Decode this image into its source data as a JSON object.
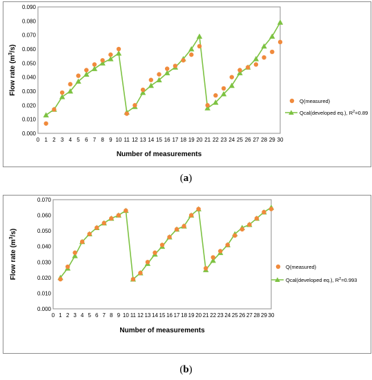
{
  "chart_data": [
    {
      "panel": "a",
      "type": "scatter",
      "xlabel": "Number of measurements",
      "ylabel_main": "Flow rate (m",
      "ylabel_sup": "3",
      "ylabel_end": "/s)",
      "xlim": [
        0,
        30
      ],
      "ylim": [
        0,
        0.09
      ],
      "x_ticks": [
        0,
        1,
        2,
        3,
        4,
        5,
        6,
        7,
        8,
        9,
        10,
        11,
        12,
        13,
        14,
        15,
        16,
        17,
        18,
        19,
        20,
        21,
        22,
        23,
        24,
        25,
        26,
        27,
        28,
        29,
        30
      ],
      "y_ticks": [
        "0.000",
        "0.010",
        "0.020",
        "0.030",
        "0.040",
        "0.050",
        "0.060",
        "0.070",
        "0.080",
        "0.090"
      ],
      "legend_placement": "right",
      "series": [
        {
          "name": "Q(measured)",
          "kind": "markers",
          "color": "#f08a3c",
          "x": [
            1,
            2,
            3,
            4,
            5,
            6,
            7,
            8,
            9,
            10,
            11,
            12,
            13,
            14,
            15,
            16,
            17,
            18,
            19,
            20,
            21,
            22,
            23,
            24,
            25,
            26,
            27,
            28,
            29,
            30
          ],
          "y": [
            0.007,
            0.017,
            0.029,
            0.035,
            0.041,
            0.045,
            0.049,
            0.052,
            0.056,
            0.06,
            0.014,
            0.02,
            0.031,
            0.038,
            0.042,
            0.046,
            0.048,
            0.052,
            0.056,
            0.062,
            0.02,
            0.027,
            0.032,
            0.04,
            0.045,
            0.047,
            0.049,
            0.054,
            0.058,
            0.065
          ]
        },
        {
          "name": "Qcal(developed eq.), R",
          "name_sup": "2",
          "name_end": "=0.89",
          "kind": "line",
          "color": "#7dc242",
          "x": [
            1,
            2,
            3,
            4,
            5,
            6,
            7,
            8,
            9,
            10,
            11,
            12,
            13,
            14,
            15,
            16,
            17,
            18,
            19,
            20,
            21,
            22,
            23,
            24,
            25,
            26,
            27,
            28,
            29,
            30
          ],
          "y": [
            0.013,
            0.017,
            0.026,
            0.03,
            0.037,
            0.042,
            0.046,
            0.05,
            0.053,
            0.057,
            0.015,
            0.019,
            0.029,
            0.034,
            0.038,
            0.043,
            0.047,
            0.053,
            0.06,
            0.069,
            0.018,
            0.022,
            0.028,
            0.034,
            0.043,
            0.047,
            0.053,
            0.062,
            0.069,
            0.079
          ]
        }
      ]
    },
    {
      "panel": "b",
      "type": "scatter",
      "xlabel": "Number of measurements",
      "ylabel_main": "Flow rate  (m",
      "ylabel_sup": "3",
      "ylabel_end": "/s)",
      "xlim": [
        0,
        30
      ],
      "ylim": [
        0,
        0.07
      ],
      "x_ticks": [
        0,
        1,
        2,
        3,
        4,
        5,
        6,
        7,
        8,
        9,
        10,
        11,
        12,
        13,
        14,
        15,
        16,
        17,
        18,
        19,
        20,
        21,
        22,
        23,
        24,
        25,
        26,
        27,
        28,
        29,
        30
      ],
      "y_ticks": [
        "0.000",
        "0.010",
        "0.020",
        "0.030",
        "0.040",
        "0.050",
        "0.060",
        "0.070"
      ],
      "legend_placement": "right",
      "series": [
        {
          "name": "Q(measured)",
          "kind": "markers",
          "color": "#f08a3c",
          "x": [
            1,
            2,
            3,
            4,
            5,
            6,
            7,
            8,
            9,
            10,
            11,
            12,
            13,
            14,
            15,
            16,
            17,
            18,
            19,
            20,
            21,
            22,
            23,
            24,
            25,
            26,
            27,
            28,
            29,
            30
          ],
          "y": [
            0.019,
            0.027,
            0.036,
            0.043,
            0.048,
            0.052,
            0.055,
            0.058,
            0.06,
            0.063,
            0.019,
            0.023,
            0.03,
            0.036,
            0.041,
            0.046,
            0.051,
            0.053,
            0.06,
            0.064,
            0.026,
            0.033,
            0.037,
            0.041,
            0.047,
            0.051,
            0.054,
            0.058,
            0.062,
            0.064
          ]
        },
        {
          "name": "Qcal(developed eq.), R",
          "name_sup": "2",
          "name_end": "=0.993",
          "kind": "line",
          "color": "#7dc242",
          "x": [
            1,
            2,
            3,
            4,
            5,
            6,
            7,
            8,
            9,
            10,
            11,
            12,
            13,
            14,
            15,
            16,
            17,
            18,
            19,
            20,
            21,
            22,
            23,
            24,
            25,
            26,
            27,
            28,
            29,
            30
          ],
          "y": [
            0.02,
            0.026,
            0.034,
            0.043,
            0.048,
            0.052,
            0.055,
            0.058,
            0.06,
            0.063,
            0.019,
            0.023,
            0.029,
            0.035,
            0.04,
            0.046,
            0.051,
            0.053,
            0.06,
            0.064,
            0.025,
            0.031,
            0.036,
            0.041,
            0.048,
            0.052,
            0.054,
            0.058,
            0.062,
            0.065
          ]
        }
      ]
    }
  ],
  "captions": {
    "a_open": "(",
    "a_letter": "a",
    "a_close": ")",
    "b_open": "(",
    "b_letter": "b",
    "b_close": ")"
  }
}
